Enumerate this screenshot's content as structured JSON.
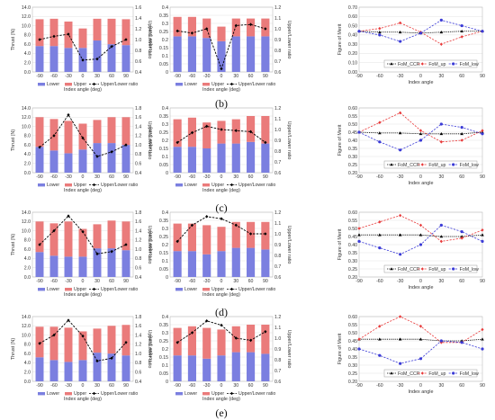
{
  "colors": {
    "lower": "#7b7fe0",
    "upper": "#ea7b7b",
    "ratio": "#000000",
    "ccr": "#000000",
    "fom_up": "#e83a3a",
    "fom_low": "#3b3bd6"
  },
  "row_labels": [
    "(b)",
    "(c)",
    "(d)",
    "(e)"
  ],
  "chart_data": [
    {
      "type": "bar",
      "panel": "thrust",
      "row": 0,
      "ylabel": "Thrust (N)",
      "y2label": "Upper/Lower ratio",
      "xlabel": "Index angle (deg)",
      "categories": [
        "-90",
        "-60",
        "-30",
        "0",
        "30",
        "60",
        "90"
      ],
      "ylim": [
        0,
        14
      ],
      "yticks": [
        "0.0",
        "2.0",
        "4.0",
        "6.0",
        "8.0",
        "10.0",
        "12.0",
        "14.0"
      ],
      "y2lim": [
        0.4,
        1.6
      ],
      "y2ticks": [
        "0.4",
        "0.6",
        "0.8",
        "1.0",
        "1.2",
        "1.4",
        "1.6"
      ],
      "series": [
        {
          "name": "Lower",
          "values": [
            5.6,
            5.6,
            5.2,
            5.2,
            6.8,
            6.0,
            5.8
          ]
        },
        {
          "name": "Upper",
          "values": [
            5.8,
            5.9,
            5.7,
            4.2,
            4.7,
            5.5,
            5.6
          ]
        },
        {
          "name": "Upper/Lower ratio",
          "values": [
            1.0,
            1.06,
            1.1,
            0.62,
            0.64,
            0.87,
            1.0
          ]
        }
      ]
    },
    {
      "type": "bar",
      "panel": "torque",
      "row": 0,
      "ylabel": "Torque (Nm)",
      "y2label": "Upper/Lower ratio",
      "xlabel": "Index angle (deg)",
      "categories": [
        "-90",
        "-60",
        "-30",
        "0",
        "30",
        "60",
        "90"
      ],
      "ylim": [
        0,
        0.4
      ],
      "yticks": [
        "0",
        "0.05",
        "0.1",
        "0.15",
        "0.2",
        "0.25",
        "0.3",
        "0.35",
        "0.4"
      ],
      "y2lim": [
        0.6,
        1.2
      ],
      "y2ticks": [
        "0.6",
        "0.7",
        "0.8",
        "0.9",
        "1.0",
        "1.1",
        "1.2"
      ],
      "series": [
        {
          "name": "Lower",
          "values": [
            0.22,
            0.22,
            0.21,
            0.19,
            0.22,
            0.22,
            0.22
          ]
        },
        {
          "name": "Upper",
          "values": [
            0.12,
            0.12,
            0.12,
            0.09,
            0.11,
            0.11,
            0.11
          ]
        },
        {
          "name": "Upper/Lower ratio",
          "values": [
            0.98,
            0.96,
            1.0,
            0.63,
            1.03,
            1.04,
            1.0
          ]
        }
      ]
    },
    {
      "type": "line",
      "panel": "fom",
      "row": 0,
      "ylabel": "Figure of Merit",
      "xlabel": "Index angle",
      "x": [
        -90,
        -60,
        -30,
        0,
        30,
        60,
        90
      ],
      "ylim": [
        0,
        0.7
      ],
      "yticks": [
        "0.00",
        "0.10",
        "0.20",
        "0.30",
        "0.40",
        "0.50",
        "0.60",
        "0.70"
      ],
      "xticks": [
        "-90",
        "-60",
        "-30",
        "0",
        "30",
        "60",
        "90"
      ],
      "series": [
        {
          "name": "FoM_CCR",
          "values": [
            0.44,
            0.43,
            0.43,
            0.42,
            0.43,
            0.44,
            0.44
          ]
        },
        {
          "name": "FoM_up",
          "values": [
            0.44,
            0.47,
            0.53,
            0.43,
            0.3,
            0.38,
            0.44
          ]
        },
        {
          "name": "FoM_low",
          "values": [
            0.44,
            0.4,
            0.33,
            0.42,
            0.56,
            0.5,
            0.44
          ]
        }
      ]
    },
    {
      "type": "bar",
      "panel": "thrust",
      "row": 1,
      "ylabel": "Thrust (N)",
      "y2label": "Upper/Lower ratio",
      "xlabel": "Index angle (deg)",
      "categories": [
        "-90",
        "-60",
        "-30",
        "0",
        "30",
        "60",
        "90"
      ],
      "ylim": [
        0,
        14
      ],
      "yticks": [
        "0.0",
        "2.0",
        "4.0",
        "6.0",
        "8.0",
        "10.0",
        "12.0",
        "14.0"
      ],
      "y2lim": [
        0.4,
        1.8
      ],
      "y2ticks": [
        "0.4",
        "0.6",
        "0.8",
        "1.0",
        "1.2",
        "1.4",
        "1.6",
        "1.8"
      ],
      "series": [
        {
          "name": "Lower",
          "values": [
            5.6,
            4.8,
            4.2,
            5.0,
            6.4,
            6.4,
            6.0
          ]
        },
        {
          "name": "Upper",
          "values": [
            6.4,
            6.8,
            7.0,
            5.6,
            5.0,
            5.6,
            6.0
          ]
        },
        {
          "name": "Upper/Lower ratio",
          "values": [
            0.95,
            1.2,
            1.65,
            1.15,
            0.75,
            0.85,
            1.0
          ]
        }
      ]
    },
    {
      "type": "bar",
      "panel": "torque",
      "row": 1,
      "ylabel": "Torque (Nm)",
      "y2label": "Upper/Lower ratio",
      "xlabel": "Index angle (deg)",
      "categories": [
        "-90",
        "-60",
        "-30",
        "0",
        "30",
        "60",
        "90"
      ],
      "ylim": [
        0,
        0.4
      ],
      "yticks": [
        "0",
        "0.05",
        "0.1",
        "0.15",
        "0.2",
        "0.25",
        "0.3",
        "0.35",
        "0.4"
      ],
      "y2lim": [
        0.6,
        1.2
      ],
      "y2ticks": [
        "0.6",
        "0.7",
        "0.8",
        "0.9",
        "1.0",
        "1.1",
        "1.2"
      ],
      "series": [
        {
          "name": "Lower",
          "values": [
            0.16,
            0.16,
            0.15,
            0.18,
            0.18,
            0.19,
            0.18
          ]
        },
        {
          "name": "Upper",
          "values": [
            0.17,
            0.18,
            0.16,
            0.14,
            0.15,
            0.16,
            0.17
          ]
        },
        {
          "name": "Upper/Lower ratio",
          "values": [
            0.88,
            0.97,
            1.03,
            1.0,
            0.99,
            0.98,
            0.88
          ]
        }
      ]
    },
    {
      "type": "line",
      "panel": "fom",
      "row": 1,
      "ylabel": "Figure of Merit",
      "xlabel": "Index angle",
      "x": [
        -90,
        -60,
        -30,
        0,
        30,
        60,
        90
      ],
      "ylim": [
        0.2,
        0.6
      ],
      "yticks": [
        "0.20",
        "0.25",
        "0.30",
        "0.35",
        "0.40",
        "0.45",
        "0.50",
        "0.55",
        "0.60"
      ],
      "xticks": [
        "-90",
        "-60",
        "-30",
        "0",
        "30",
        "60",
        "90"
      ],
      "series": [
        {
          "name": "FoM_CCR",
          "values": [
            0.45,
            0.445,
            0.445,
            0.44,
            0.44,
            0.44,
            0.45
          ]
        },
        {
          "name": "FoM_up",
          "values": [
            0.45,
            0.51,
            0.57,
            0.46,
            0.39,
            0.4,
            0.46
          ]
        },
        {
          "name": "FoM_low",
          "values": [
            0.45,
            0.39,
            0.34,
            0.4,
            0.5,
            0.48,
            0.44
          ]
        }
      ]
    },
    {
      "type": "bar",
      "panel": "thrust",
      "row": 2,
      "ylabel": "Thrust (N)",
      "y2label": "Upper/Lower ratio",
      "xlabel": "Index angle (deg)",
      "categories": [
        "-90",
        "-60",
        "-30",
        "0",
        "30",
        "60",
        "90"
      ],
      "ylim": [
        0,
        14
      ],
      "yticks": [
        "0.0",
        "2.0",
        "4.0",
        "6.0",
        "8.0",
        "10.0",
        "12.0",
        "14.0"
      ],
      "y2lim": [
        0.4,
        1.8
      ],
      "y2ticks": [
        "0.4",
        "0.6",
        "0.8",
        "1.0",
        "1.2",
        "1.4",
        "1.6",
        "1.8"
      ],
      "series": [
        {
          "name": "Lower",
          "values": [
            5.4,
            4.6,
            4.4,
            4.4,
            6.2,
            6.2,
            5.8
          ]
        },
        {
          "name": "Upper",
          "values": [
            6.6,
            7.0,
            7.6,
            6.0,
            5.2,
            6.0,
            6.2
          ]
        },
        {
          "name": "Upper/Lower ratio",
          "values": [
            1.1,
            1.4,
            1.72,
            1.38,
            0.9,
            0.95,
            1.1
          ]
        }
      ]
    },
    {
      "type": "bar",
      "panel": "torque",
      "row": 2,
      "ylabel": "Torque (Nm)",
      "y2label": "Upper/Lower ratio",
      "xlabel": "Index angle (deg)",
      "categories": [
        "-90",
        "-60",
        "-30",
        "0",
        "30",
        "60",
        "90"
      ],
      "ylim": [
        0,
        0.4
      ],
      "yticks": [
        "0",
        "0.05",
        "0.1",
        "0.15",
        "0.2",
        "0.25",
        "0.3",
        "0.35",
        "0.4"
      ],
      "y2lim": [
        0.6,
        1.2
      ],
      "y2ticks": [
        "0.6",
        "0.7",
        "0.8",
        "0.9",
        "1.0",
        "1.1",
        "1.2"
      ],
      "series": [
        {
          "name": "Lower",
          "values": [
            0.16,
            0.16,
            0.14,
            0.16,
            0.18,
            0.18,
            0.17
          ]
        },
        {
          "name": "Upper",
          "values": [
            0.17,
            0.17,
            0.18,
            0.15,
            0.16,
            0.16,
            0.17
          ]
        },
        {
          "name": "Upper/Lower ratio",
          "values": [
            0.93,
            1.08,
            1.16,
            1.14,
            1.08,
            1.0,
            1.0
          ]
        }
      ]
    },
    {
      "type": "line",
      "panel": "fom",
      "row": 2,
      "ylabel": "Figure of Merit",
      "xlabel": "Index angle",
      "x": [
        -90,
        -60,
        -30,
        0,
        30,
        60,
        90
      ],
      "ylim": [
        0.2,
        0.6
      ],
      "yticks": [
        "0.20",
        "0.25",
        "0.30",
        "0.35",
        "0.40",
        "0.45",
        "0.50",
        "0.55",
        "0.60"
      ],
      "xticks": [
        "-90",
        "-60",
        "-30",
        "0",
        "30",
        "60",
        "90"
      ],
      "series": [
        {
          "name": "FoM_CCR",
          "values": [
            0.46,
            0.46,
            0.46,
            0.46,
            0.45,
            0.45,
            0.46
          ]
        },
        {
          "name": "FoM_up",
          "values": [
            0.5,
            0.54,
            0.58,
            0.52,
            0.42,
            0.44,
            0.49
          ]
        },
        {
          "name": "FoM_low",
          "values": [
            0.42,
            0.38,
            0.34,
            0.4,
            0.52,
            0.48,
            0.42
          ]
        }
      ]
    },
    {
      "type": "bar",
      "panel": "thrust",
      "row": 3,
      "ylabel": "Thrust (N)",
      "y2label": "Upper/Lower ratio",
      "xlabel": "Index angle (deg)",
      "categories": [
        "-90",
        "-60",
        "-30",
        "0",
        "30",
        "60",
        "90"
      ],
      "ylim": [
        0,
        14
      ],
      "yticks": [
        "0.0",
        "2.0",
        "4.0",
        "6.0",
        "8.0",
        "10.0",
        "12.0",
        "14.0"
      ],
      "y2lim": [
        0.4,
        1.8
      ],
      "y2ticks": [
        "0.4",
        "0.6",
        "0.8",
        "1.0",
        "1.2",
        "1.4",
        "1.6",
        "1.8"
      ],
      "series": [
        {
          "name": "Lower",
          "values": [
            5.2,
            4.6,
            4.2,
            4.6,
            6.2,
            6.0,
            5.6
          ]
        },
        {
          "name": "Upper",
          "values": [
            6.6,
            7.2,
            7.4,
            6.2,
            5.2,
            6.0,
            6.6
          ]
        },
        {
          "name": "Upper/Lower ratio",
          "values": [
            1.22,
            1.4,
            1.72,
            1.38,
            0.84,
            0.9,
            1.24
          ]
        }
      ]
    },
    {
      "type": "bar",
      "panel": "torque",
      "row": 3,
      "ylabel": "Torque (Nm)",
      "y2label": "Upper/Lower ratio",
      "xlabel": "Index angle (deg)",
      "categories": [
        "-90",
        "-60",
        "-30",
        "0",
        "30",
        "60",
        "90"
      ],
      "ylim": [
        0,
        0.4
      ],
      "yticks": [
        "0",
        "0.05",
        "0.1",
        "0.15",
        "0.2",
        "0.25",
        "0.3",
        "0.35",
        "0.4"
      ],
      "y2lim": [
        0.6,
        1.2
      ],
      "y2ticks": [
        "0.6",
        "0.7",
        "0.8",
        "0.9",
        "1.0",
        "1.1",
        "1.2"
      ],
      "series": [
        {
          "name": "Lower",
          "values": [
            0.16,
            0.16,
            0.14,
            0.16,
            0.18,
            0.18,
            0.17
          ]
        },
        {
          "name": "Upper",
          "values": [
            0.17,
            0.18,
            0.19,
            0.16,
            0.16,
            0.17,
            0.18
          ]
        },
        {
          "name": "Upper/Lower ratio",
          "values": [
            0.96,
            1.05,
            1.16,
            1.12,
            1.0,
            0.98,
            1.06
          ]
        }
      ]
    },
    {
      "type": "line",
      "panel": "fom",
      "row": 3,
      "ylabel": "Figure of Merit",
      "xlabel": "Index angle",
      "x": [
        -90,
        -60,
        -30,
        0,
        30,
        60,
        90
      ],
      "ylim": [
        0.2,
        0.6
      ],
      "yticks": [
        "0.20",
        "0.25",
        "0.30",
        "0.35",
        "0.40",
        "0.45",
        "0.50",
        "0.55",
        "0.60"
      ],
      "xticks": [
        "-90",
        "-60",
        "-30",
        "0",
        "30",
        "60",
        "90"
      ],
      "series": [
        {
          "name": "FoM_CCR",
          "values": [
            0.46,
            0.46,
            0.46,
            0.46,
            0.45,
            0.45,
            0.46
          ]
        },
        {
          "name": "FoM_up",
          "values": [
            0.46,
            0.54,
            0.6,
            0.54,
            0.44,
            0.44,
            0.52
          ]
        },
        {
          "name": "FoM_low",
          "values": [
            0.4,
            0.36,
            0.31,
            0.34,
            0.45,
            0.44,
            0.4
          ]
        }
      ]
    }
  ]
}
